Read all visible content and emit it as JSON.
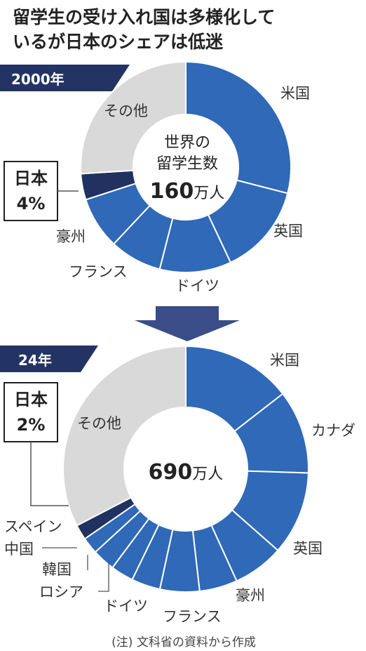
{
  "title_line1": "留学生の受け入れ国は多様化して",
  "title_line2": "いるが日本のシェアは低迷",
  "colors": {
    "blue": "#2f69b8",
    "navy": "#213160",
    "gray": "#d9d9d9",
    "band": "#233464"
  },
  "chart_data": [
    {
      "type": "pie",
      "year_label": "2000年",
      "center": [
        "世界の",
        "留学生数"
      ],
      "total": "160",
      "total_unit": "万人",
      "highlight": {
        "name": "日本",
        "value_label": "4%"
      },
      "slices": [
        {
          "name": "米国",
          "value": 29
        },
        {
          "name": "英国",
          "value": 14
        },
        {
          "name": "ドイツ",
          "value": 11
        },
        {
          "name": "フランス",
          "value": 8
        },
        {
          "name": "豪州",
          "value": 8
        },
        {
          "name": "日本",
          "value": 4
        },
        {
          "name": "その他",
          "value": 26
        }
      ]
    },
    {
      "type": "pie",
      "year_label": "24年",
      "center": [],
      "total": "690",
      "total_unit": "万人",
      "highlight": {
        "name": "日本",
        "value_label": "2%"
      },
      "slices": [
        {
          "name": "米国",
          "value": 14.5
        },
        {
          "name": "カナダ",
          "value": 11
        },
        {
          "name": "英国",
          "value": 11
        },
        {
          "name": "豪州",
          "value": 6.7
        },
        {
          "name": "フランス",
          "value": 5
        },
        {
          "name": "ドイツ",
          "value": 5.2
        },
        {
          "name": "ロシア",
          "value": 3.8
        },
        {
          "name": "韓国",
          "value": 3
        },
        {
          "name": "中国",
          "value": 3
        },
        {
          "name": "スペイン",
          "value": 2.2
        },
        {
          "name": "日本",
          "value": 2
        },
        {
          "name": "その他",
          "value": 32.6
        }
      ]
    }
  ],
  "arrow": "down-arrow",
  "footnote": "(注) 文科省の資料から作成"
}
